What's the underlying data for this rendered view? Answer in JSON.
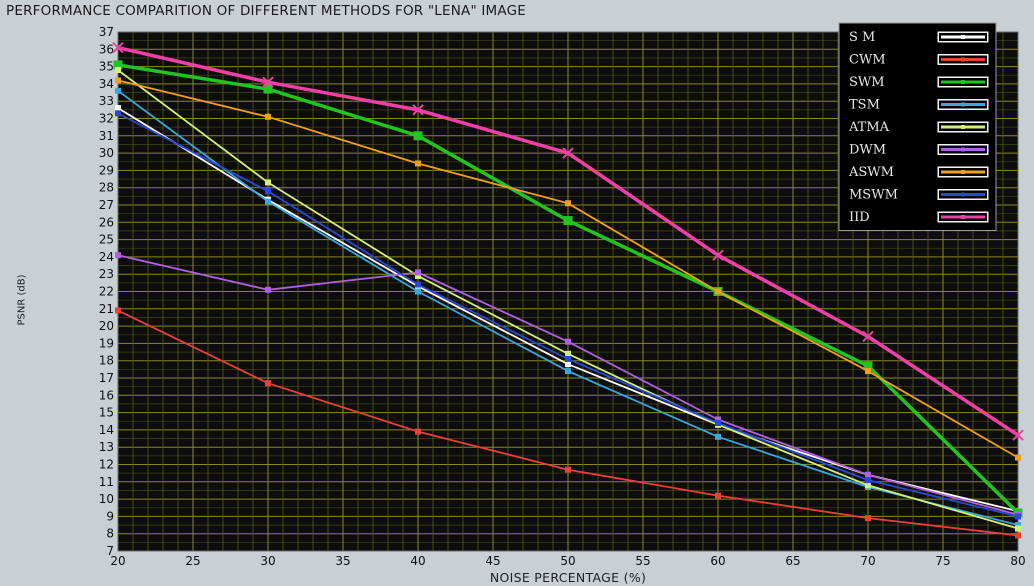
{
  "chart_data": {
    "type": "line",
    "title": "PERFORMANCE COMPARITION OF DIFFERENT METHODS FOR \"LENA\" IMAGE",
    "xlabel": "NOISE PERCENTAGE (%)",
    "ylabel": "PSNR (dB)",
    "xlim": [
      20,
      80
    ],
    "ylim": [
      7,
      37
    ],
    "xticks": [
      20,
      25,
      30,
      35,
      40,
      45,
      50,
      55,
      60,
      65,
      70,
      75,
      80
    ],
    "yticks": [
      7,
      8,
      9,
      10,
      11,
      12,
      13,
      14,
      15,
      16,
      17,
      18,
      19,
      20,
      21,
      22,
      23,
      24,
      25,
      26,
      27,
      28,
      29,
      30,
      31,
      32,
      33,
      34,
      35,
      36,
      37
    ],
    "grid": true,
    "legend_position": "top-right",
    "x": [
      20,
      30,
      40,
      50,
      60,
      70,
      80
    ],
    "series": [
      {
        "name": "S M",
        "color": "#ffffff",
        "values": [
          32.6,
          27.3,
          22.3,
          17.8,
          14.3,
          11.4,
          9.3
        ]
      },
      {
        "name": "CWM",
        "color": "#e8403a",
        "values": [
          20.9,
          16.7,
          13.9,
          11.7,
          10.2,
          8.9,
          7.9
        ]
      },
      {
        "name": "SWM",
        "color": "#22c422",
        "values": [
          35.1,
          33.7,
          31.0,
          26.1,
          22.0,
          17.7,
          9.2
        ]
      },
      {
        "name": "TSM",
        "color": "#39a8e0",
        "values": [
          33.6,
          27.2,
          22.0,
          17.4,
          13.6,
          10.7,
          8.5
        ]
      },
      {
        "name": "ATMA",
        "color": "#d4f07a",
        "values": [
          34.8,
          28.3,
          22.9,
          18.4,
          14.3,
          10.8,
          8.3
        ]
      },
      {
        "name": "DWM",
        "color": "#b060e0",
        "values": [
          24.1,
          22.1,
          23.1,
          19.1,
          14.6,
          11.4,
          9.1
        ]
      },
      {
        "name": "ASWM",
        "color": "#f0a020",
        "values": [
          34.2,
          32.1,
          29.4,
          27.1,
          22.0,
          17.4,
          12.4
        ]
      },
      {
        "name": "MSWM",
        "color": "#2848d8",
        "values": [
          32.3,
          27.8,
          22.4,
          18.1,
          14.4,
          11.1,
          9.0
        ]
      },
      {
        "name": "IID",
        "color": "#f040a8",
        "values": [
          36.1,
          34.1,
          32.5,
          30.0,
          24.1,
          19.4,
          13.7
        ]
      }
    ]
  }
}
